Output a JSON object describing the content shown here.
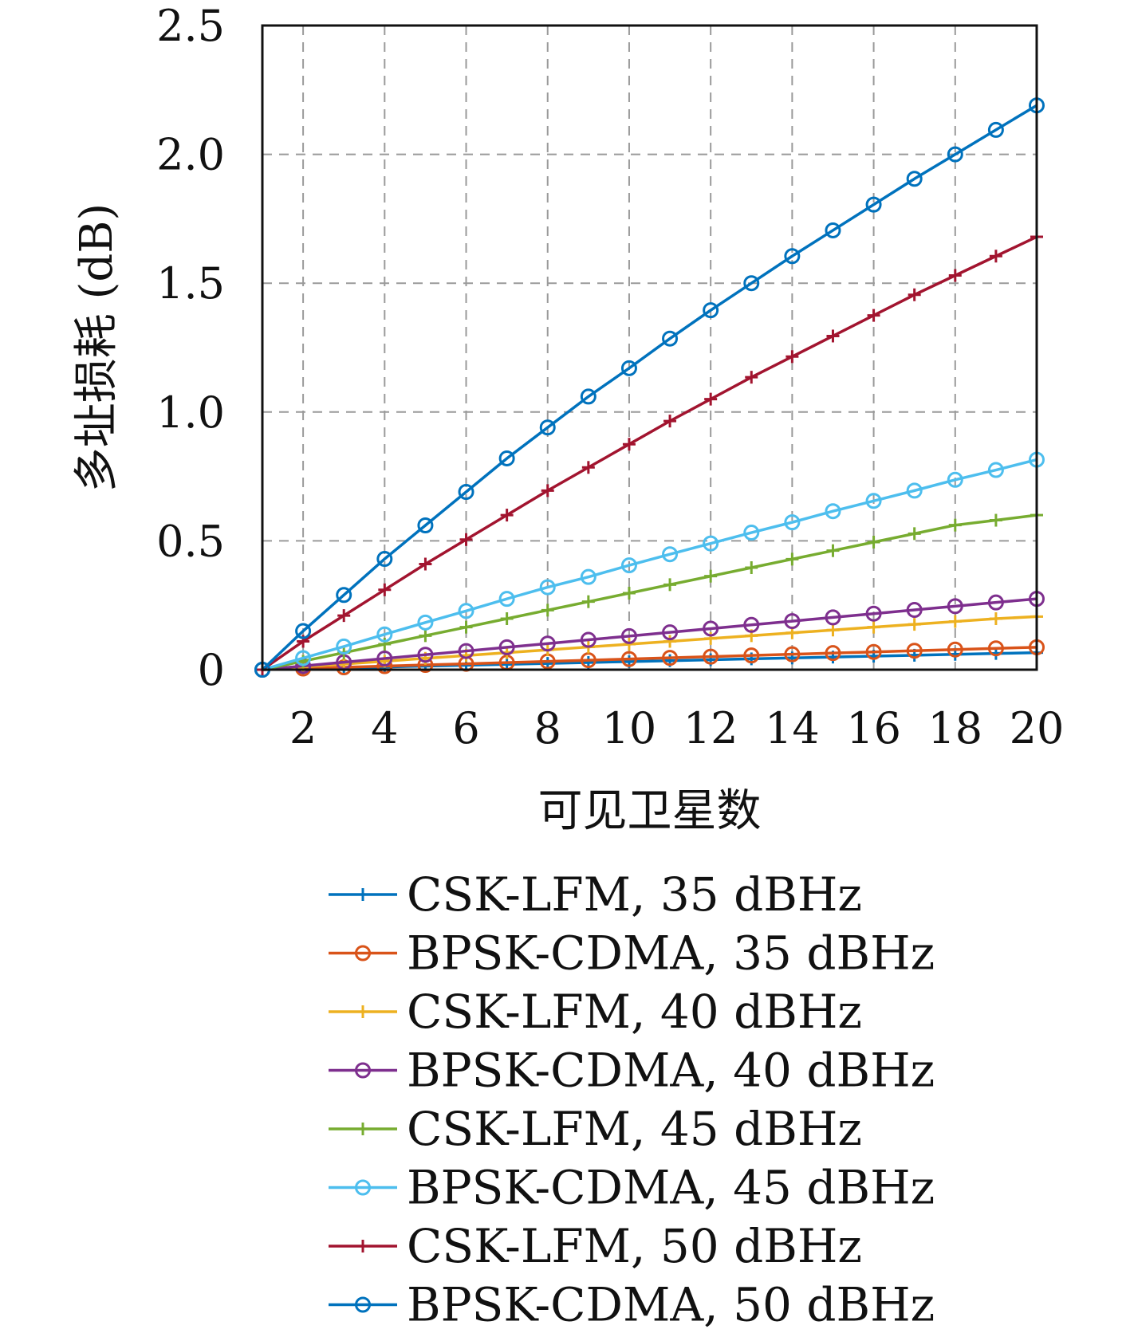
{
  "chart_data": {
    "type": "line",
    "title": "",
    "xlabel": "可见卫星数",
    "ylabel": "多址损耗 (dB)",
    "xlim": [
      1,
      20
    ],
    "ylim": [
      0,
      2.5
    ],
    "x_ticks": [
      2,
      4,
      6,
      8,
      10,
      12,
      14,
      16,
      18,
      20
    ],
    "y_ticks": [
      0,
      0.5,
      1.0,
      1.5,
      2.0,
      2.5
    ],
    "y_tick_labels": [
      "0",
      "0.5",
      "1.0",
      "1.5",
      "2.0",
      "2.5"
    ],
    "grid": true,
    "legend_position": "bottom",
    "x": [
      1,
      2,
      3,
      4,
      5,
      6,
      7,
      8,
      9,
      10,
      11,
      12,
      13,
      14,
      15,
      16,
      17,
      18,
      19,
      20
    ],
    "series": [
      {
        "name": "CSK-LFM, 35 dBHz",
        "color": "#0072BD",
        "marker": "plus",
        "values": [
          0,
          0.0035,
          0.007,
          0.0105,
          0.014,
          0.0175,
          0.021,
          0.0245,
          0.028,
          0.0315,
          0.035,
          0.0385,
          0.042,
          0.0455,
          0.049,
          0.0525,
          0.056,
          0.0595,
          0.063,
          0.066
        ]
      },
      {
        "name": "BPSK-CDMA, 35 dBHz",
        "color": "#D95319",
        "marker": "circle",
        "values": [
          0,
          0.0046,
          0.0092,
          0.0138,
          0.0184,
          0.023,
          0.0276,
          0.0322,
          0.0368,
          0.0414,
          0.046,
          0.0506,
          0.0552,
          0.0598,
          0.0644,
          0.069,
          0.0736,
          0.0782,
          0.0828,
          0.087
        ]
      },
      {
        "name": "CSK-LFM, 40 dBHz",
        "color": "#EDB120",
        "marker": "plus",
        "values": [
          0,
          0.011,
          0.022,
          0.033,
          0.044,
          0.055,
          0.066,
          0.077,
          0.088,
          0.099,
          0.11,
          0.121,
          0.132,
          0.143,
          0.154,
          0.165,
          0.176,
          0.187,
          0.198,
          0.206
        ]
      },
      {
        "name": "BPSK-CDMA, 40 dBHz",
        "color": "#7E2F8E",
        "marker": "circle",
        "values": [
          0,
          0.0145,
          0.029,
          0.0435,
          0.058,
          0.0725,
          0.087,
          0.1015,
          0.116,
          0.1305,
          0.145,
          0.1595,
          0.174,
          0.1885,
          0.203,
          0.2175,
          0.232,
          0.2465,
          0.261,
          0.275
        ]
      },
      {
        "name": "CSK-LFM, 45 dBHz",
        "color": "#77AC30",
        "marker": "plus",
        "values": [
          0,
          0.033,
          0.066,
          0.099,
          0.132,
          0.165,
          0.198,
          0.231,
          0.264,
          0.297,
          0.33,
          0.363,
          0.396,
          0.429,
          0.462,
          0.495,
          0.528,
          0.561,
          0.58,
          0.6
        ]
      },
      {
        "name": "BPSK-CDMA, 45 dBHz",
        "color": "#4DBEEE",
        "marker": "circle",
        "values": [
          0,
          0.045,
          0.09,
          0.137,
          0.183,
          0.228,
          0.275,
          0.32,
          0.36,
          0.405,
          0.448,
          0.49,
          0.532,
          0.572,
          0.615,
          0.655,
          0.695,
          0.737,
          0.775,
          0.815
        ]
      },
      {
        "name": "CSK-LFM, 50 dBHz",
        "color": "#A2142F",
        "marker": "plus",
        "values": [
          0,
          0.11,
          0.21,
          0.31,
          0.41,
          0.505,
          0.6,
          0.695,
          0.785,
          0.875,
          0.965,
          1.05,
          1.135,
          1.215,
          1.295,
          1.375,
          1.455,
          1.53,
          1.605,
          1.68
        ]
      },
      {
        "name": "BPSK-CDMA, 50 dBHz",
        "color": "#0072BD",
        "marker": "circle",
        "values": [
          0,
          0.15,
          0.29,
          0.43,
          0.56,
          0.69,
          0.82,
          0.94,
          1.06,
          1.17,
          1.285,
          1.395,
          1.5,
          1.605,
          1.705,
          1.805,
          1.905,
          2.0,
          2.095,
          2.19
        ]
      }
    ]
  }
}
